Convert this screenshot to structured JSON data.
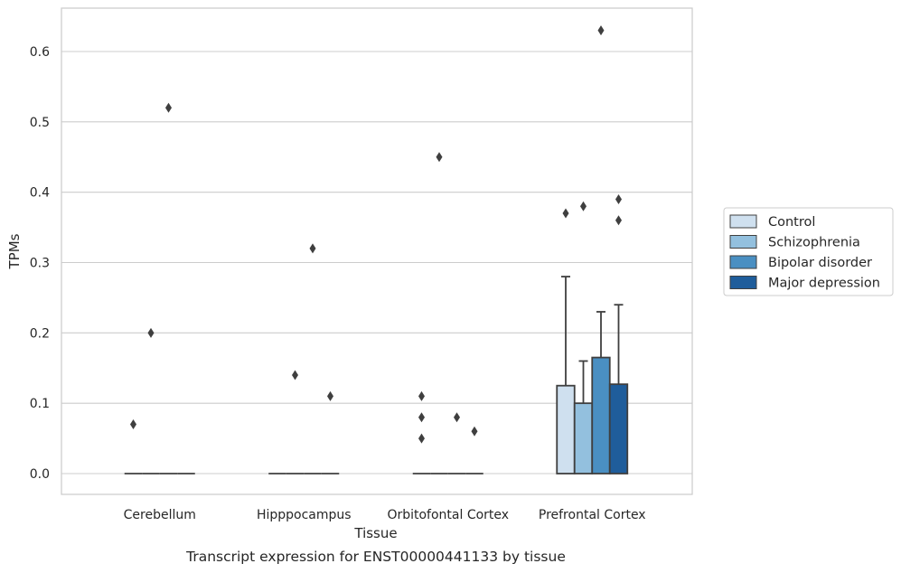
{
  "caption": "Transcript expression for ENST00000441133 by tissue",
  "chart_data": {
    "type": "bar",
    "title": "",
    "xlabel": "Tissue",
    "ylabel": "TPMs",
    "ylim": [
      -0.03,
      0.66
    ],
    "yticks": [
      0.0,
      0.1,
      0.2,
      0.3,
      0.4,
      0.5,
      0.6
    ],
    "ytick_labels": [
      "0.0",
      "0.1",
      "0.2",
      "0.3",
      "0.4",
      "0.5",
      "0.6"
    ],
    "grid": "horizontal",
    "legend_position": "right",
    "categories": [
      "Cerebellum",
      "Hipppocampus",
      "Orbitofontal Cortex",
      "Prefrontal Cortex"
    ],
    "series": [
      {
        "name": "Control",
        "color": "#cfe0ef",
        "values": [
          0.0,
          0.0,
          0.0,
          0.125
        ],
        "whisker_upper": [
          0.0,
          0.0,
          0.0,
          0.28
        ],
        "outliers": [
          [
            0.07
          ],
          [],
          [
            0.11,
            0.08,
            0.05
          ],
          [
            0.37
          ]
        ]
      },
      {
        "name": "Schizophrenia",
        "color": "#93c0de",
        "values": [
          0.0,
          0.0,
          0.0,
          0.1
        ],
        "whisker_upper": [
          0.0,
          0.0,
          0.0,
          0.16
        ],
        "outliers": [
          [
            0.2
          ],
          [
            0.14
          ],
          [
            0.45
          ],
          [
            0.38
          ]
        ]
      },
      {
        "name": "Bipolar disorder",
        "color": "#4a8fc2",
        "values": [
          0.0,
          0.0,
          0.0,
          0.165
        ],
        "whisker_upper": [
          0.0,
          0.0,
          0.0,
          0.23
        ],
        "outliers": [
          [
            0.52
          ],
          [
            0.32
          ],
          [
            0.08
          ],
          [
            0.63
          ]
        ]
      },
      {
        "name": "Major depression",
        "color": "#1f5d9b",
        "values": [
          0.0,
          0.0,
          0.0,
          0.127
        ],
        "whisker_upper": [
          0.0,
          0.0,
          0.0,
          0.24
        ],
        "outliers": [
          [],
          [
            0.11
          ],
          [
            0.06
          ],
          [
            0.39,
            0.36
          ]
        ]
      }
    ]
  }
}
